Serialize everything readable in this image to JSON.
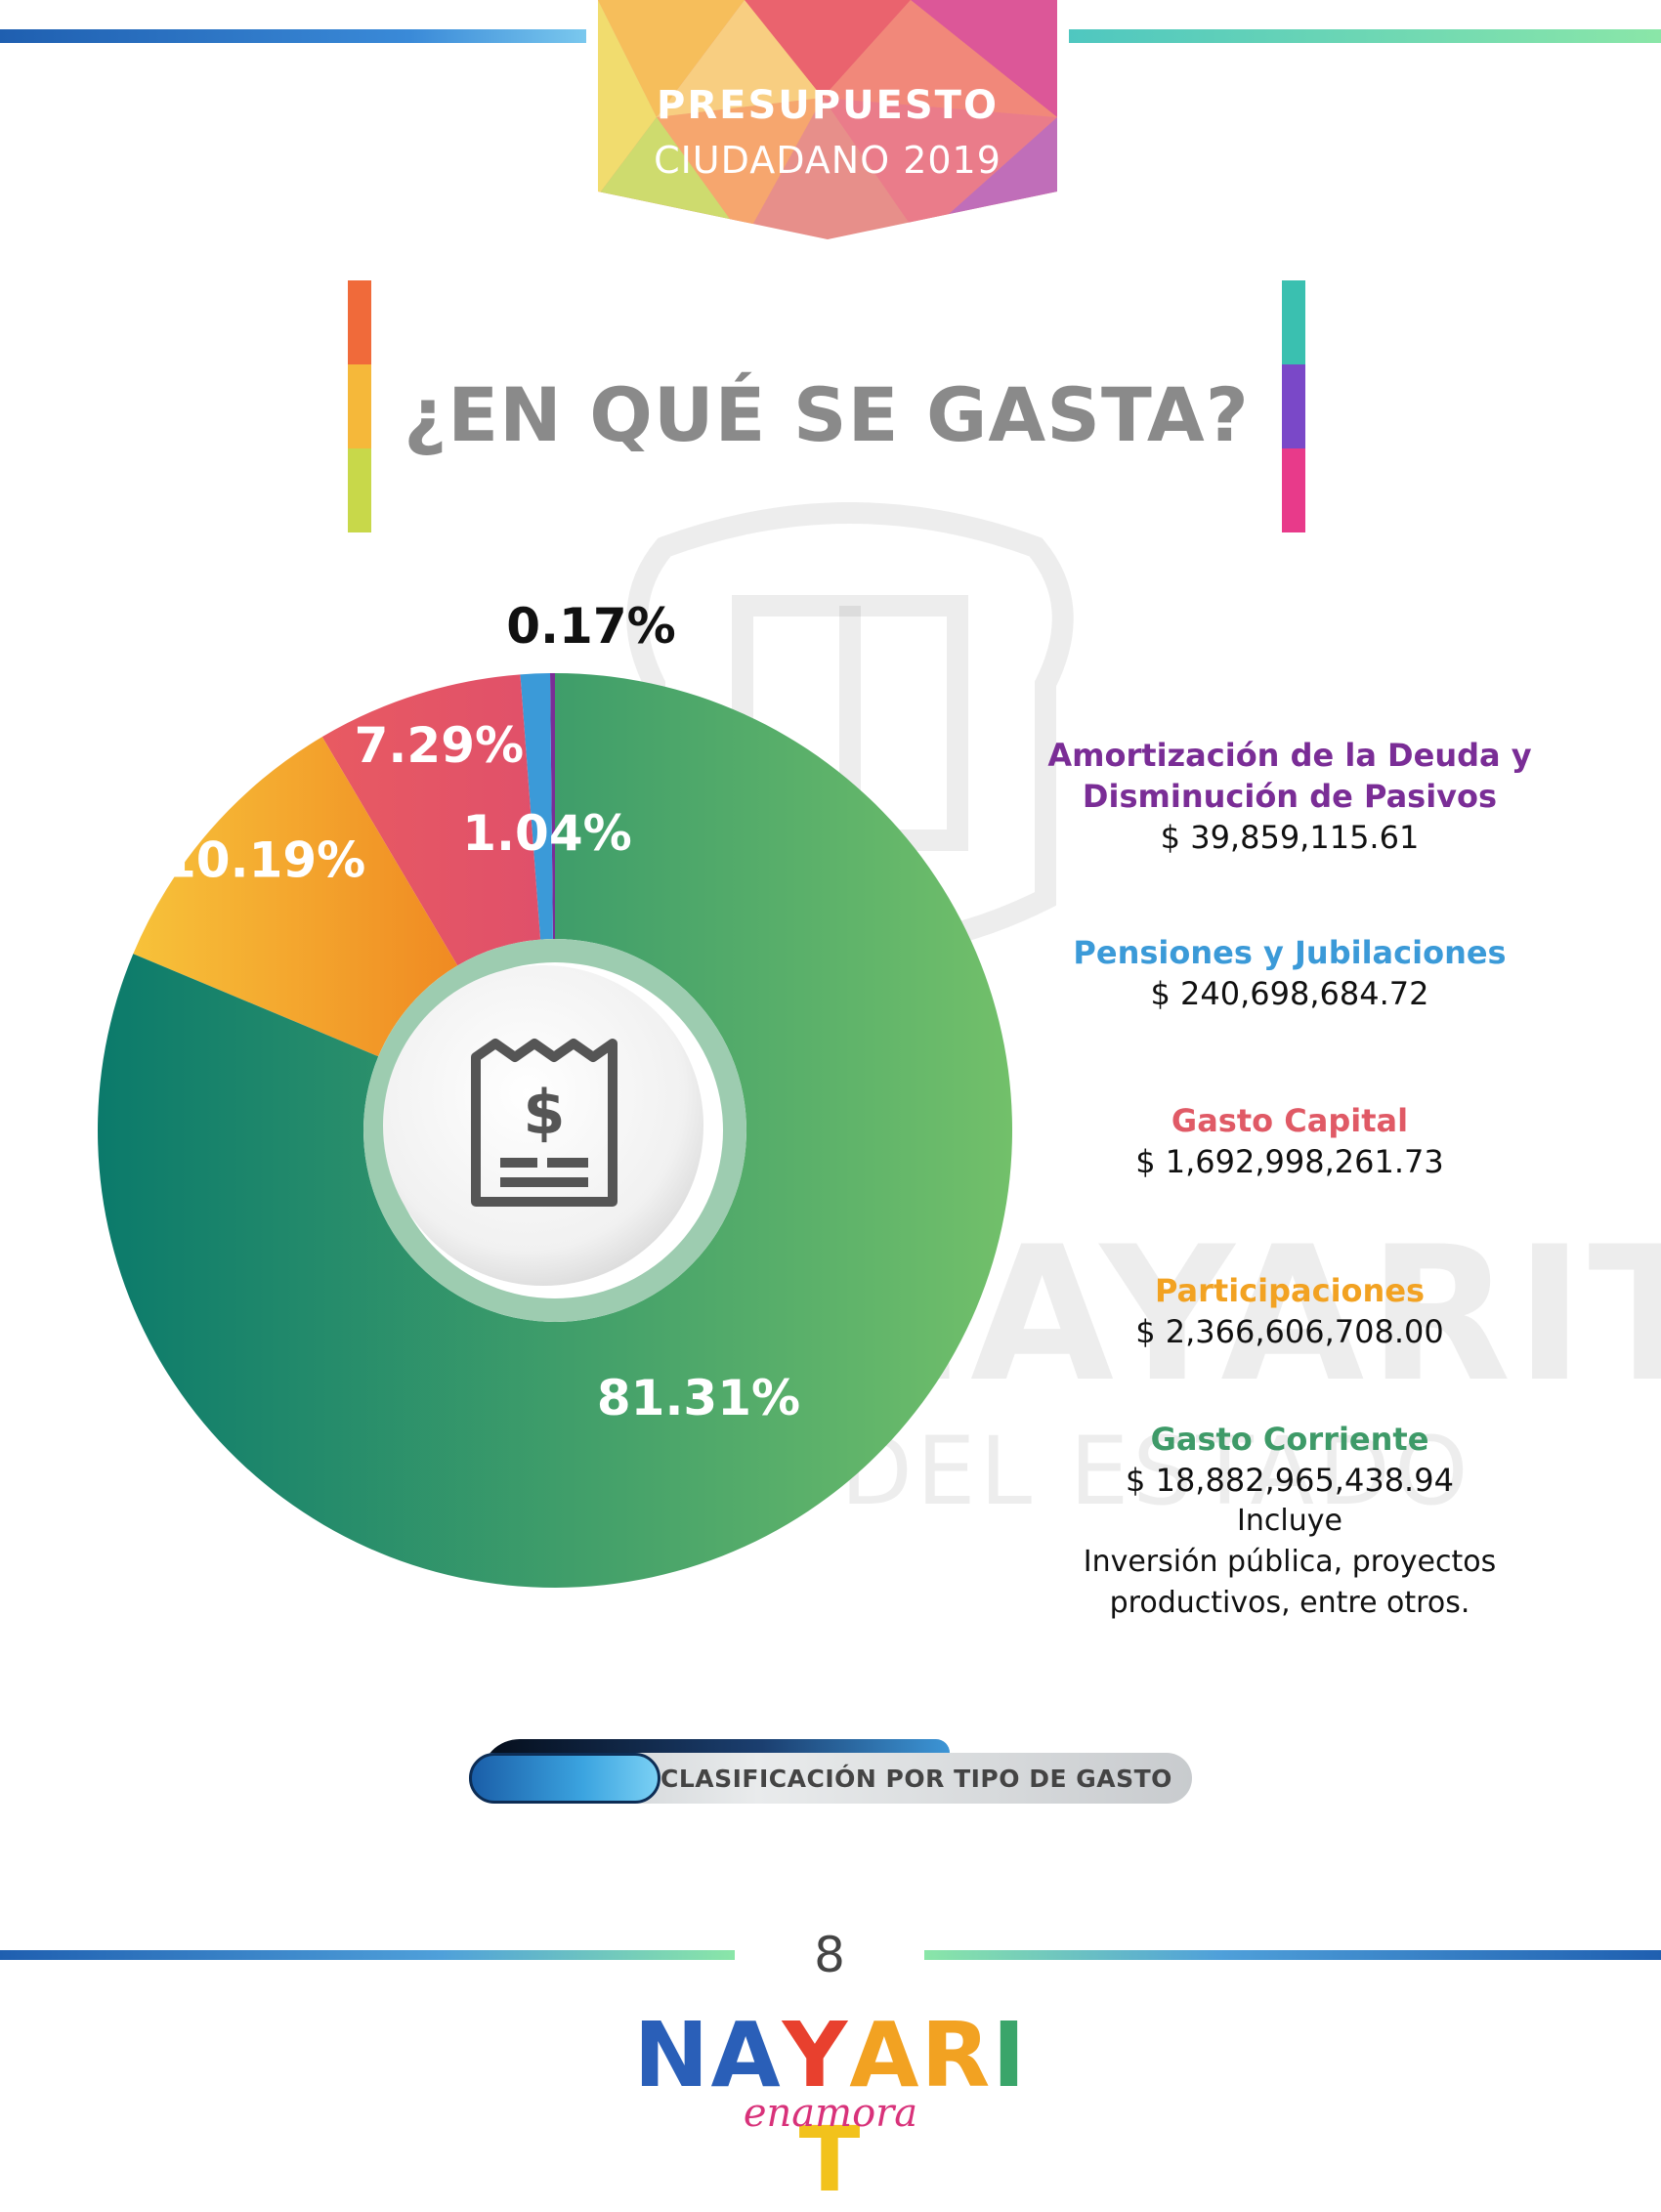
{
  "header": {
    "banner_title": "PRESUPUESTO",
    "banner_subtitle": "CIUDADANO 2019"
  },
  "heading": "¿EN QUÉ SE GASTA?",
  "watermark": {
    "word": "NAYARIT",
    "line": "DEL ESTADO"
  },
  "chart_data": {
    "type": "pie",
    "categories": [
      "Amortización de la Deuda y Disminución de Pasivos",
      "Pensiones y Jubilaciones",
      "Gasto Capital",
      "Participaciones",
      "Gasto Corriente"
    ],
    "values": [
      0.17,
      1.04,
      7.29,
      10.19,
      81.31
    ],
    "labels": [
      "0.17%",
      "1.04%",
      "7.29%",
      "10.19%",
      "81.31%"
    ],
    "colors": [
      "#7a2d96",
      "#3b9ad8",
      "#e85a62",
      "#f2a222",
      "#0b7a6b"
    ],
    "style": "donut"
  },
  "legend": {
    "items": [
      {
        "name_line1": "Amortización de la Deuda y",
        "name_line2": "Disminución de Pasivos",
        "amount": "$ 39,859,115.61",
        "color": "#7a2d96"
      },
      {
        "name": "Pensiones y Jubilaciones",
        "amount": "$ 240,698,684.72",
        "color": "#3b9ad8"
      },
      {
        "name": "Gasto Capital",
        "amount": "$ 1,692,998,261.73",
        "color": "#e05a66"
      },
      {
        "name": "Participaciones",
        "amount": "$ 2,366,606,708.00",
        "color": "#f2a222"
      },
      {
        "name": "Gasto Corriente",
        "amount": "$ 18,882,965,438.94",
        "color": "#3e9a68",
        "note_line1": "Incluye",
        "note_line2": "Inversión pública, proyectos",
        "note_line3": "productivos, entre otros."
      }
    ]
  },
  "caption": "CLASIFICACIÓN POR TIPO DE GASTO",
  "footer": {
    "page_number": "8",
    "logo_word": "NAYARIT",
    "logo_tagline": "enamora",
    "logo_colors": [
      "#2a5fb8",
      "#2a5fb8",
      "#e8402e",
      "#f2a222",
      "#f2a222",
      "#3aa56a",
      "#f2c21c"
    ]
  }
}
